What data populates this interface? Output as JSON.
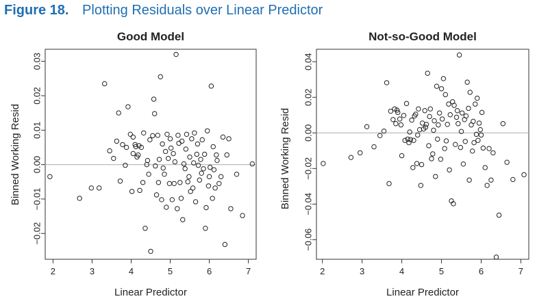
{
  "figure": {
    "number": "Figure 18.",
    "title": "Plotting Residuals over Linear Predictor"
  },
  "chart_data": [
    {
      "type": "scatter",
      "title": "Good Model",
      "xlabel": "Linear Predictor",
      "ylabel": "Binned Working Resid",
      "xlim": [
        1.8,
        7.2
      ],
      "ylim": [
        -0.0275,
        0.0335
      ],
      "xticks": [
        2,
        3,
        4,
        5,
        6,
        7
      ],
      "yticks": [
        -0.02,
        -0.01,
        0.0,
        0.01,
        0.02,
        0.03
      ],
      "ytick_labels": [
        "−0.02",
        "−0.01",
        "0.00",
        "0.01",
        "0.02",
        "0.03"
      ],
      "reference_line": 0,
      "grid": false,
      "marker": "open-circle",
      "x": [
        1.92,
        2.68,
        2.98,
        3.18,
        3.32,
        3.45,
        3.55,
        3.63,
        3.68,
        3.72,
        3.78,
        3.85,
        3.88,
        3.92,
        3.98,
        4.02,
        4.05,
        4.05,
        4.1,
        4.12,
        4.15,
        4.18,
        4.2,
        4.22,
        4.26,
        4.3,
        4.32,
        4.36,
        4.4,
        4.42,
        4.45,
        4.48,
        4.5,
        4.55,
        4.58,
        4.6,
        4.62,
        4.65,
        4.68,
        4.7,
        4.72,
        4.75,
        4.78,
        4.8,
        4.82,
        4.85,
        4.88,
        4.9,
        4.92,
        4.95,
        4.98,
        5.0,
        5.02,
        5.05,
        5.08,
        5.1,
        5.12,
        5.15,
        5.18,
        5.2,
        5.22,
        5.25,
        5.28,
        5.3,
        5.32,
        5.35,
        5.38,
        5.4,
        5.42,
        5.45,
        5.48,
        5.5,
        5.52,
        5.55,
        5.58,
        5.6,
        5.62,
        5.65,
        5.68,
        5.7,
        5.72,
        5.75,
        5.78,
        5.8,
        5.82,
        5.85,
        5.88,
        5.9,
        5.92,
        5.95,
        5.98,
        6.0,
        6.02,
        6.05,
        6.08,
        6.1,
        6.12,
        6.15,
        6.18,
        6.2,
        6.25,
        6.3,
        6.35,
        6.4,
        6.45,
        6.5,
        6.55,
        6.7,
        6.85,
        7.1
      ],
      "y": [
        -0.0035,
        -0.0098,
        -0.0068,
        -0.0068,
        0.0235,
        0.004,
        0.0018,
        0.0068,
        0.015,
        -0.0048,
        0.0058,
        -0.0002,
        0.005,
        0.0168,
        0.0088,
        -0.0078,
        0.0032,
        0.008,
        0.0058,
        0.0052,
        0.0022,
        0.0028,
        0.0055,
        -0.0075,
        0.005,
        -0.0052,
        0.0092,
        -0.0185,
        0.0,
        0.0012,
        -0.0028,
        0.0072,
        -0.0252,
        0.0084,
        0.019,
        0.0148,
        -0.0004,
        -0.0088,
        0.0085,
        -0.0052,
        0.0015,
        0.0255,
        -0.0102,
        0.006,
        -0.001,
        -0.0028,
        0.0038,
        -0.0124,
        0.0088,
        0.0018,
        -0.0055,
        0.0075,
        0.0048,
        -0.0102,
        0.0032,
        -0.0055,
        0.0008,
        0.032,
        -0.0128,
        0.0085,
        0.0062,
        -0.0052,
        -0.0098,
        0.0068,
        -0.016,
        0.0002,
        -0.0012,
        0.0045,
        0.0088,
        -0.005,
        -0.0035,
        0.0022,
        -0.0078,
        0.0075,
        -0.0068,
        0.0005,
        0.0092,
        -0.0108,
        0.003,
        0.006,
        -0.0002,
        -0.0045,
        0.0015,
        -0.0025,
        0.0072,
        -0.0012,
        0.003,
        -0.0185,
        -0.0125,
        0.0098,
        -0.0062,
        -0.0035,
        -0.0008,
        0.0228,
        -0.0098,
        0.0052,
        -0.0015,
        -0.0068,
        0.0028,
        0.0012,
        -0.0055,
        -0.0035,
        0.008,
        -0.0232,
        0.0028,
        0.0075,
        -0.0128,
        -0.0028,
        -0.0148,
        0.0002
      ]
    },
    {
      "type": "scatter",
      "title": "Not-so-Good Model",
      "xlabel": "Linear Predictor",
      "ylabel": "Binned Working Resid",
      "xlim": [
        1.85,
        7.2
      ],
      "ylim": [
        -0.071,
        0.047
      ],
      "xticks": [
        2,
        3,
        4,
        5,
        6,
        7
      ],
      "yticks": [
        -0.06,
        -0.04,
        -0.02,
        0.0,
        0.02,
        0.04
      ],
      "ytick_labels": [
        "−0.06",
        "−0.04",
        "−0.02",
        "0.00",
        "0.02",
        "0.04"
      ],
      "reference_line": 0,
      "grid": false,
      "marker": "open-circle",
      "x": [
        2.02,
        2.72,
        2.95,
        3.12,
        3.3,
        3.45,
        3.55,
        3.62,
        3.68,
        3.72,
        3.78,
        3.82,
        3.85,
        3.88,
        3.9,
        3.95,
        3.98,
        4.0,
        4.05,
        4.08,
        4.12,
        4.15,
        4.18,
        4.2,
        4.22,
        4.25,
        4.28,
        4.3,
        4.32,
        4.35,
        4.38,
        4.4,
        4.42,
        4.45,
        4.48,
        4.5,
        4.52,
        4.55,
        4.58,
        4.6,
        4.62,
        4.65,
        4.68,
        4.7,
        4.72,
        4.75,
        4.78,
        4.8,
        4.82,
        4.85,
        4.88,
        4.9,
        4.92,
        4.95,
        4.98,
        5.0,
        5.02,
        5.05,
        5.08,
        5.1,
        5.12,
        5.15,
        5.18,
        5.2,
        5.22,
        5.25,
        5.28,
        5.3,
        5.32,
        5.35,
        5.38,
        5.4,
        5.42,
        5.45,
        5.48,
        5.5,
        5.52,
        5.55,
        5.58,
        5.6,
        5.62,
        5.65,
        5.68,
        5.7,
        5.72,
        5.75,
        5.78,
        5.8,
        5.82,
        5.85,
        5.88,
        5.9,
        5.92,
        5.95,
        5.98,
        6.0,
        6.02,
        6.05,
        6.1,
        6.15,
        6.2,
        6.25,
        6.3,
        6.38,
        6.45,
        6.55,
        6.65,
        6.8,
        7.08
      ],
      "y": [
        -0.0172,
        -0.0138,
        -0.0112,
        0.0035,
        -0.0078,
        -0.0015,
        0.001,
        0.0282,
        -0.0285,
        0.0122,
        0.0075,
        0.0135,
        0.0052,
        0.0128,
        0.0115,
        0.0078,
        0.0045,
        -0.0128,
        0.0098,
        -0.0042,
        0.0165,
        -0.0035,
        -0.0055,
        0.0005,
        -0.0038,
        0.0072,
        -0.0195,
        -0.0042,
        0.0095,
        0.0105,
        -0.0172,
        -0.0012,
        0.0135,
        0.0018,
        -0.0295,
        -0.0178,
        0.0055,
        0.0022,
        0.0125,
        0.0032,
        0.0048,
        0.0335,
        -0.0072,
        0.0092,
        0.0135,
        -0.0145,
        -0.0118,
        0.0015,
        0.0068,
        -0.0245,
        0.0262,
        -0.0035,
        0.0045,
        0.0112,
        -0.0148,
        0.0248,
        0.0078,
        0.0305,
        -0.0088,
        0.0215,
        -0.0045,
        0.0048,
        0.0162,
        -0.0208,
        0.0102,
        -0.0382,
        0.0175,
        -0.0398,
        0.0155,
        -0.0065,
        0.0088,
        0.0125,
        0.0052,
        0.0438,
        -0.0082,
        0.0008,
        0.0112,
        -0.0175,
        0.0075,
        -0.0048,
        0.0095,
        0.0285,
        0.0138,
        -0.0265,
        0.0228,
        0.0045,
        -0.0102,
        0.0065,
        -0.0055,
        0.0162,
        -0.0008,
        0.0195,
        -0.0042,
        0.0055,
        0.0018,
        -0.0012,
        0.0115,
        -0.0085,
        -0.0195,
        -0.0295,
        -0.0088,
        -0.0265,
        -0.0112,
        -0.0698,
        -0.0462,
        0.0052,
        -0.0165,
        -0.0262,
        -0.0235
      ]
    }
  ]
}
